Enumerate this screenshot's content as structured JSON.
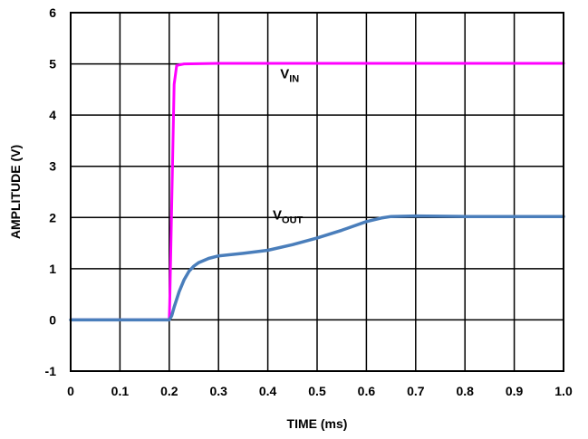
{
  "chart_data": {
    "type": "line",
    "title": "",
    "xlabel": "TIME (ms)",
    "ylabel": "AMPLITUDE (V)",
    "xlim": [
      0,
      1.0
    ],
    "ylim": [
      -1,
      6
    ],
    "x_ticks": [
      "0",
      "0.1",
      "0.2",
      "0.3",
      "0.4",
      "0.5",
      "0.6",
      "0.7",
      "0.8",
      "0.9",
      "1.0"
    ],
    "y_ticks": [
      "-1",
      "0",
      "1",
      "2",
      "3",
      "4",
      "5",
      "6"
    ],
    "grid": true,
    "legend": "none",
    "series": [
      {
        "name": "VIN",
        "color": "#ff00ff",
        "x": [
          0,
          0.2,
          0.201,
          0.21,
          0.215,
          0.23,
          0.3,
          0.5,
          0.7,
          1.0
        ],
        "y": [
          0,
          0,
          0.3,
          4.6,
          4.97,
          5.0,
          5.01,
          5.01,
          5.01,
          5.01
        ]
      },
      {
        "name": "VOUT",
        "color": "#4a7ebb",
        "x": [
          0,
          0.1,
          0.2,
          0.205,
          0.21,
          0.22,
          0.23,
          0.24,
          0.25,
          0.26,
          0.28,
          0.3,
          0.35,
          0.4,
          0.45,
          0.5,
          0.55,
          0.6,
          0.63,
          0.65,
          0.7,
          0.8,
          0.9,
          1.0
        ],
        "y": [
          0,
          0,
          0,
          0.08,
          0.25,
          0.55,
          0.78,
          0.95,
          1.05,
          1.12,
          1.2,
          1.25,
          1.3,
          1.36,
          1.47,
          1.6,
          1.75,
          1.92,
          1.99,
          2.02,
          2.03,
          2.02,
          2.02,
          2.02
        ]
      }
    ],
    "annotations": [
      {
        "main": "V",
        "sub": "IN",
        "x": 0.425,
        "y": 4.72
      },
      {
        "main": "V",
        "sub": "OUT",
        "x": 0.41,
        "y": 1.96
      }
    ]
  }
}
